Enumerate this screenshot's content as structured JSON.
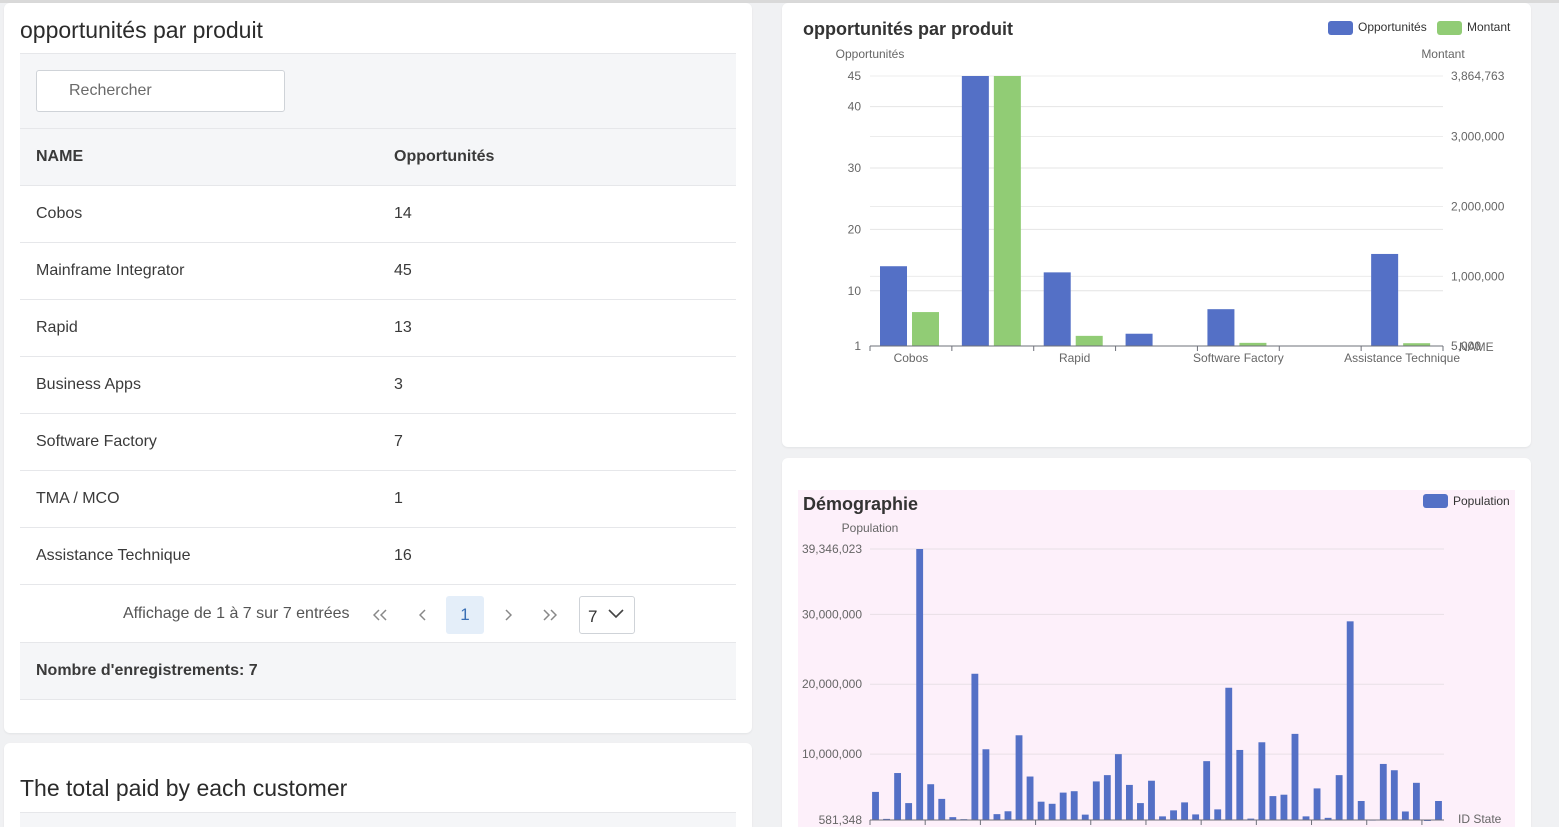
{
  "table_card": {
    "title": "opportunités par produit",
    "search_placeholder": "Rechercher",
    "columns": [
      "NAME",
      "Opportunités"
    ],
    "rows": [
      {
        "name": "Cobos",
        "value": "14"
      },
      {
        "name": "Mainframe Integrator",
        "value": "45"
      },
      {
        "name": "Rapid",
        "value": "13"
      },
      {
        "name": "Business Apps",
        "value": "3"
      },
      {
        "name": "Software Factory",
        "value": "7"
      },
      {
        "name": "TMA / MCO",
        "value": "1"
      },
      {
        "name": "Assistance Technique",
        "value": "16"
      }
    ],
    "pagination": {
      "info": "Affichage de 1 à 7 sur 7 entrées",
      "first": "«",
      "prev": "‹",
      "current_page": "1",
      "next": "›",
      "last": "»",
      "page_size": "7"
    },
    "footer": "Nombre d'enregistrements: 7"
  },
  "total_card": {
    "title": "The total paid by each customer"
  },
  "chart1": {
    "title": "opportunités par produit",
    "legend": [
      "Opportunités",
      "Montant"
    ],
    "colors": {
      "series1": "#5470c6",
      "series2": "#91cc75"
    },
    "chart_data": {
      "type": "bar",
      "title": "opportunités par produit",
      "categories": [
        "Cobos",
        "Mainframe Integrator",
        "Rapid",
        "Business Apps",
        "Software Factory",
        "TMA / MCO",
        "Assistance Technique"
      ],
      "x_tick_labels": [
        "Cobos",
        "",
        "Rapid",
        "",
        "Software Factory",
        "",
        "Assistance Technique"
      ],
      "xlabel": "NAME",
      "series": [
        {
          "name": "Opportunités",
          "axis": "left",
          "values": [
            14,
            45,
            13,
            3,
            7,
            1,
            16
          ]
        },
        {
          "name": "Montant",
          "axis": "right",
          "values": [
            490000,
            3864763,
            150000,
            5000,
            50000,
            5000,
            45000
          ]
        }
      ],
      "y_left": {
        "label": "Opportunités",
        "min": 1,
        "max": 45,
        "ticks": [
          "1",
          "10",
          "20",
          "30",
          "40",
          "45"
        ]
      },
      "y_right": {
        "label": "Montant",
        "min": 5000,
        "max": 3864763,
        "ticks": [
          "5,000",
          "1,000,000",
          "2,000,000",
          "3,000,000",
          "3,864,763"
        ]
      },
      "legend_position": "top-right",
      "grid": true
    }
  },
  "chart2": {
    "title": "Démographie",
    "legend": [
      "Population"
    ],
    "colors": {
      "bar": "#5470c6",
      "background": "#fdf0fa"
    },
    "chart_data": {
      "type": "bar",
      "title": "Démographie",
      "xlabel": "ID State",
      "ylabel": "Population",
      "ylim": [
        581348,
        39346023
      ],
      "y_ticks": [
        "581,348",
        "10,000,000",
        "20,000,000",
        "30,000,000",
        "39,346,023"
      ],
      "legend_position": "top-right",
      "grid": true,
      "values": [
        4600000,
        740000,
        7300000,
        3000000,
        39346023,
        5700000,
        3600000,
        990000,
        700000,
        21500000,
        10700000,
        1420000,
        1830000,
        12700000,
        6800000,
        3200000,
        2900000,
        4500000,
        4700000,
        1350000,
        6100000,
        7000000,
        10000000,
        5600000,
        3000000,
        6200000,
        1100000,
        1960000,
        3100000,
        1380000,
        9000000,
        2100000,
        19500000,
        10600000,
        780000,
        11700000,
        4000000,
        4200000,
        12900000,
        1100000,
        5100000,
        890000,
        7000000,
        29000000,
        3300000,
        640000,
        8600000,
        7700000,
        1800000,
        5900000,
        581348,
        3300000
      ]
    }
  }
}
